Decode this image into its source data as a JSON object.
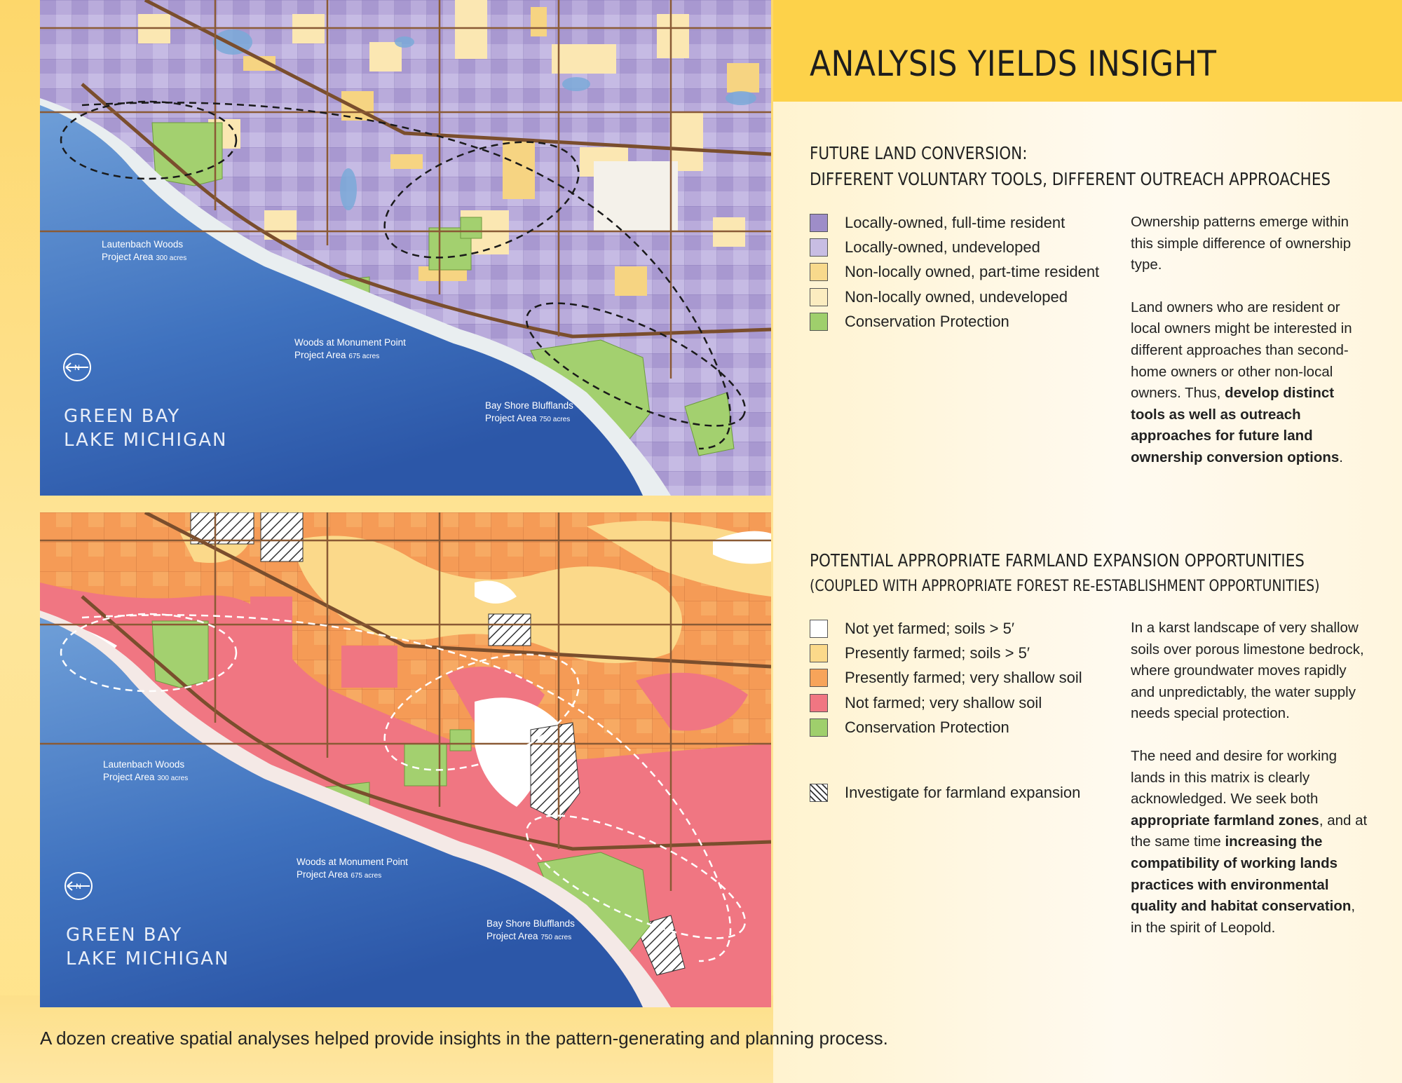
{
  "title": "ANALYSIS YIELDS INSIGHT",
  "section1": {
    "heading_line1": "FUTURE LAND CONVERSION:",
    "heading_line2": "DIFFERENT VOLUNTARY TOOLS, DIFFERENT OUTREACH APPROACHES",
    "legend": [
      {
        "label": "Locally-owned, full-time resident",
        "color": "#9e8dc8"
      },
      {
        "label": "Locally-owned, undeveloped",
        "color": "#c8bde3"
      },
      {
        "label": "Non-locally owned, part-time resident",
        "color": "#f8d98c"
      },
      {
        "label": "Non-locally owned, undeveloped",
        "color": "#fbecc0"
      },
      {
        "label": "Conservation Protection",
        "color": "#9fcf6c"
      }
    ],
    "body": {
      "p1": "Ownership patterns emerge within this simple difference of ownership type.",
      "p2_plain": "Land owners who are resident or local owners might be interested in different approaches than second-home owners or other non-local owners. Thus, ",
      "p2_bold": "develop distinct tools as well as outreach approaches for future land ownership conversion options",
      "p2_end": "."
    }
  },
  "section2": {
    "heading_line1": "POTENTIAL APPROPRIATE FARMLAND EXPANSION OPPORTUNITIES",
    "heading_line2": "(COUPLED WITH APPROPRIATE FOREST RE-ESTABLISHMENT OPPORTUNITIES)",
    "legend": [
      {
        "label": "Not yet farmed; soils > 5′",
        "color": "#ffffff"
      },
      {
        "label": "Presently farmed; soils > 5′",
        "color": "#fbd98a"
      },
      {
        "label": "Presently farmed; very shallow soil",
        "color": "#f7a45a"
      },
      {
        "label": "Not farmed; very shallow soil",
        "color": "#f07682"
      },
      {
        "label": "Conservation Protection",
        "color": "#9fcf6c"
      }
    ],
    "hatch_label": "Investigate for farmland expansion",
    "body": {
      "p1": "In a karst landscape of very shallow soils over porous limestone bedrock, where groundwater moves rapidly and unpredictably, the water supply needs special protection.",
      "p2_a": "The need and desire for working lands in this matrix is clearly acknowledged. We seek both ",
      "p2_b": "appropriate farmland zones",
      "p2_c": ", and at the same time ",
      "p2_d": "increasing the compatibility of working lands practices with environmental quality and habitat conservation",
      "p2_e": ", in the spirit of Leopold."
    }
  },
  "maps": {
    "lautenbach_name": "Lautenbach Woods",
    "lautenbach_area": "Project Area",
    "lautenbach_acres": "300 acres",
    "monument_name": "Woods at Monument Point",
    "monument_area": "Project Area",
    "monument_acres": "675 acres",
    "bayshore_name": "Bay Shore Blufflands",
    "bayshore_area": "Project Area",
    "bayshore_acres": "750 acres",
    "water_line1": "GREEN BAY",
    "water_line2": "LAKE MICHIGAN",
    "north_label": "N"
  },
  "caption": "A dozen creative spatial analyses helped provide insights in the pattern-generating and planning process."
}
